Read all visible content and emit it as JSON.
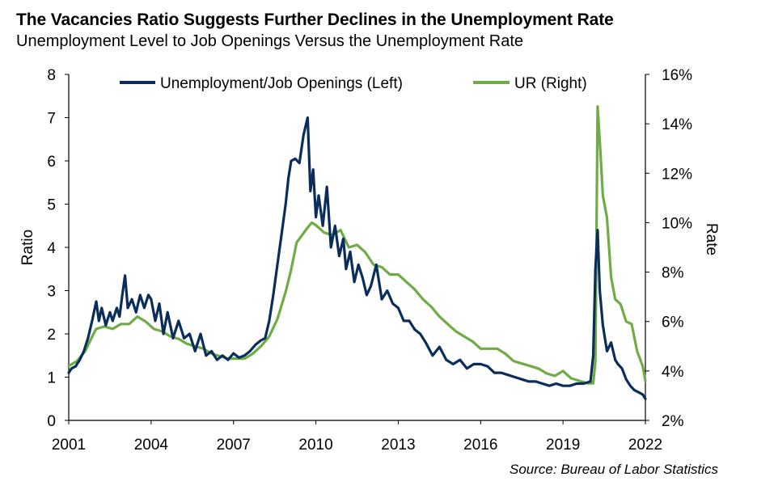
{
  "header": {
    "title": "The Vacancies Ratio Suggests Further Declines in the Unemployment Rate",
    "subtitle": "Unemployment  Level to Job Openings Versus the Unemployment  Rate"
  },
  "footer": {
    "source": "Source: Bureau of Labor Statistics"
  },
  "chart_data": {
    "type": "line",
    "ylabel_left": "Ratio",
    "ylabel_right": "Rate",
    "xlim": [
      2001,
      2022
    ],
    "ylim_left": [
      0,
      8
    ],
    "ylim_right": [
      2,
      16
    ],
    "x_ticks": [
      "2001",
      "2004",
      "2007",
      "2010",
      "2013",
      "2016",
      "2019",
      "2022"
    ],
    "x_tick_values": [
      2001,
      2004,
      2007,
      2010,
      2013,
      2016,
      2019,
      2022
    ],
    "y_ticks_left": [
      "0",
      "1",
      "2",
      "3",
      "4",
      "5",
      "6",
      "7",
      "8"
    ],
    "y_ticks_right": [
      "2%",
      "4%",
      "6%",
      "8%",
      "10%",
      "12%",
      "14%",
      "16%"
    ],
    "legend_position": "top",
    "series": [
      {
        "name": "Unemployment/Job Openings (Left)",
        "axis": "left",
        "color": "#0a2d5c",
        "x": [
          2001.0,
          2001.1,
          2001.25,
          2001.4,
          2001.55,
          2001.7,
          2001.85,
          2002.0,
          2002.1,
          2002.2,
          2002.35,
          2002.5,
          2002.6,
          2002.75,
          2002.85,
          2002.95,
          2003.05,
          2003.15,
          2003.3,
          2003.45,
          2003.6,
          2003.75,
          2003.9,
          2004.0,
          2004.15,
          2004.3,
          2004.45,
          2004.6,
          2004.8,
          2005.0,
          2005.2,
          2005.4,
          2005.6,
          2005.8,
          2006.0,
          2006.2,
          2006.4,
          2006.6,
          2006.8,
          2007.0,
          2007.2,
          2007.4,
          2007.6,
          2007.8,
          2008.0,
          2008.15,
          2008.3,
          2008.45,
          2008.6,
          2008.75,
          2008.9,
          2009.0,
          2009.1,
          2009.25,
          2009.4,
          2009.55,
          2009.7,
          2009.8,
          2009.9,
          2010.0,
          2010.1,
          2010.25,
          2010.4,
          2010.55,
          2010.7,
          2010.85,
          2011.0,
          2011.1,
          2011.25,
          2011.4,
          2011.55,
          2011.7,
          2011.85,
          2012.0,
          2012.2,
          2012.4,
          2012.6,
          2012.8,
          2013.0,
          2013.2,
          2013.4,
          2013.6,
          2013.8,
          2014.0,
          2014.25,
          2014.5,
          2014.75,
          2015.0,
          2015.25,
          2015.5,
          2015.75,
          2016.0,
          2016.25,
          2016.5,
          2016.75,
          2017.0,
          2017.25,
          2017.5,
          2017.75,
          2018.0,
          2018.25,
          2018.5,
          2018.75,
          2019.0,
          2019.25,
          2019.5,
          2019.75,
          2020.0,
          2020.1,
          2020.18,
          2020.26,
          2020.34,
          2020.45,
          2020.6,
          2020.75,
          2020.9,
          2021.0,
          2021.15,
          2021.3,
          2021.45,
          2021.6,
          2021.75,
          2021.9,
          2022.0
        ],
        "values": [
          1.1,
          1.2,
          1.25,
          1.4,
          1.6,
          1.9,
          2.3,
          2.75,
          2.3,
          2.6,
          2.2,
          2.5,
          2.3,
          2.6,
          2.4,
          2.9,
          3.35,
          2.6,
          2.8,
          2.5,
          2.9,
          2.6,
          2.9,
          2.8,
          2.3,
          2.7,
          2.0,
          2.5,
          1.9,
          2.3,
          1.9,
          2.0,
          1.6,
          2.0,
          1.5,
          1.6,
          1.4,
          1.5,
          1.4,
          1.55,
          1.45,
          1.5,
          1.6,
          1.75,
          1.85,
          1.9,
          2.3,
          2.9,
          3.6,
          4.3,
          5.0,
          5.6,
          6.0,
          6.05,
          5.95,
          6.6,
          7.0,
          5.3,
          5.8,
          4.7,
          5.2,
          4.5,
          5.4,
          4.0,
          4.5,
          3.8,
          4.2,
          3.5,
          3.9,
          3.2,
          3.6,
          3.3,
          2.9,
          3.1,
          3.6,
          2.8,
          3.0,
          2.7,
          2.6,
          2.3,
          2.3,
          2.1,
          2.0,
          1.8,
          1.5,
          1.7,
          1.4,
          1.3,
          1.4,
          1.2,
          1.3,
          1.3,
          1.25,
          1.1,
          1.1,
          1.05,
          1.0,
          0.95,
          0.9,
          0.9,
          0.85,
          0.8,
          0.85,
          0.8,
          0.8,
          0.85,
          0.85,
          0.9,
          1.5,
          3.5,
          4.4,
          3.0,
          2.2,
          1.6,
          1.8,
          1.4,
          1.3,
          1.2,
          0.95,
          0.8,
          0.7,
          0.65,
          0.6,
          0.5
        ]
      },
      {
        "name": "UR (Right)",
        "axis": "right",
        "color": "#6fac46",
        "x": [
          2001.0,
          2001.3,
          2001.6,
          2001.9,
          2002.0,
          2002.3,
          2002.6,
          2002.9,
          2003.2,
          2003.5,
          2003.8,
          2004.1,
          2004.4,
          2004.7,
          2005.0,
          2005.3,
          2005.6,
          2005.9,
          2006.2,
          2006.5,
          2006.8,
          2007.1,
          2007.4,
          2007.7,
          2008.0,
          2008.3,
          2008.6,
          2008.9,
          2009.1,
          2009.3,
          2009.5,
          2009.7,
          2009.85,
          2010.0,
          2010.3,
          2010.6,
          2010.9,
          2011.2,
          2011.5,
          2011.8,
          2012.1,
          2012.4,
          2012.7,
          2013.0,
          2013.3,
          2013.6,
          2013.9,
          2014.2,
          2014.5,
          2014.8,
          2015.1,
          2015.4,
          2015.7,
          2016.0,
          2016.3,
          2016.6,
          2016.9,
          2017.2,
          2017.5,
          2017.8,
          2018.1,
          2018.4,
          2018.7,
          2019.0,
          2019.3,
          2019.6,
          2019.9,
          2020.1,
          2020.18,
          2020.26,
          2020.34,
          2020.45,
          2020.6,
          2020.75,
          2020.9,
          2021.1,
          2021.3,
          2021.5,
          2021.7,
          2021.9,
          2022.0
        ],
        "values": [
          4.2,
          4.4,
          4.8,
          5.5,
          5.7,
          5.8,
          5.7,
          5.9,
          5.9,
          6.2,
          6.0,
          5.7,
          5.6,
          5.4,
          5.3,
          5.1,
          5.0,
          4.9,
          4.7,
          4.6,
          4.5,
          4.5,
          4.5,
          4.7,
          5.0,
          5.4,
          6.1,
          7.2,
          8.1,
          9.2,
          9.5,
          9.8,
          10.0,
          9.9,
          9.6,
          9.5,
          9.7,
          9.0,
          9.1,
          8.8,
          8.3,
          8.2,
          7.9,
          7.9,
          7.6,
          7.3,
          6.9,
          6.6,
          6.2,
          5.9,
          5.6,
          5.4,
          5.2,
          4.9,
          4.9,
          4.9,
          4.7,
          4.4,
          4.3,
          4.2,
          4.1,
          3.9,
          3.8,
          4.0,
          3.7,
          3.6,
          3.5,
          3.5,
          4.4,
          14.7,
          13.3,
          11.1,
          10.2,
          7.8,
          6.9,
          6.7,
          6.0,
          5.9,
          4.8,
          4.2,
          3.6
        ]
      }
    ]
  }
}
